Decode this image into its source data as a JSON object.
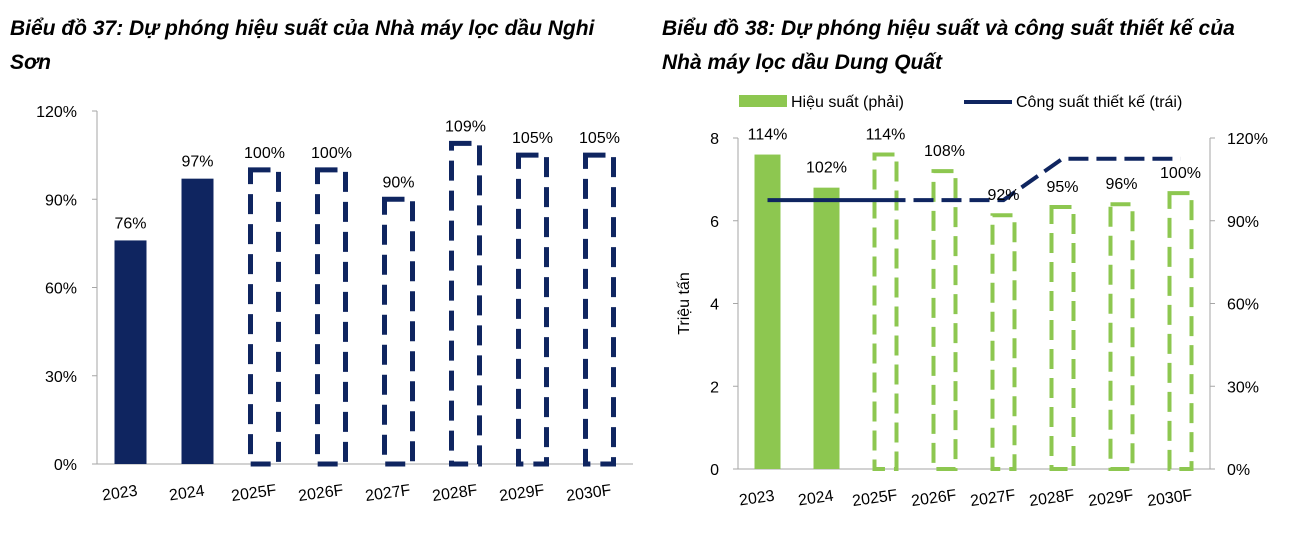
{
  "colors": {
    "navy": "#0f2560",
    "green": "#8dc750",
    "axis": "#a6a6a6"
  },
  "chart_data": [
    {
      "type": "bar",
      "title": "Biểu đồ 37: Dự phóng hiệu suất của Nhà máy lọc dầu Nghi Sơn",
      "categories": [
        "2023",
        "2024",
        "2025F",
        "2026F",
        "2027F",
        "2028F",
        "2029F",
        "2030F"
      ],
      "values": [
        76,
        97,
        100,
        100,
        90,
        109,
        105,
        105
      ],
      "data_labels": [
        "76%",
        "97%",
        "100%",
        "100%",
        "90%",
        "109%",
        "105%",
        "105%"
      ],
      "forecast": [
        false,
        false,
        true,
        true,
        true,
        true,
        true,
        true
      ],
      "ylim": [
        0,
        120
      ],
      "yticks": [
        0,
        30,
        60,
        90,
        120
      ],
      "ytick_labels": [
        "0%",
        "30%",
        "60%",
        "90%",
        "120%"
      ],
      "grid": false,
      "legend": "none"
    },
    {
      "type": "bar",
      "title": "Biểu đồ 38: Dự phóng hiệu suất và công suất thiết kế của Nhà máy lọc dầu Dung Quất",
      "categories": [
        "2023",
        "2024",
        "2025F",
        "2026F",
        "2027F",
        "2028F",
        "2029F",
        "2030F"
      ],
      "ylabel": "Triệu tấn",
      "ylim_left": [
        0,
        8
      ],
      "yticks_left": [
        0,
        2,
        4,
        6,
        8
      ],
      "ytick_labels_left": [
        "0",
        "2",
        "4",
        "6",
        "8"
      ],
      "ylim_right": [
        0,
        120
      ],
      "yticks_right": [
        0,
        30,
        60,
        90,
        120
      ],
      "ytick_labels_right": [
        "0%",
        "30%",
        "60%",
        "90%",
        "120%"
      ],
      "legend_position": "top",
      "grid": false,
      "series": [
        {
          "name": "Hiệu suất (phải)",
          "type": "bar",
          "axis": "right",
          "values": [
            114,
            102,
            114,
            108,
            92,
            95,
            96,
            100
          ],
          "data_labels": [
            "114%",
            "102%",
            "114%",
            "108%",
            "92%",
            "95%",
            "96%",
            "100%"
          ],
          "forecast": [
            false,
            false,
            true,
            true,
            true,
            true,
            true,
            true
          ]
        },
        {
          "name": "Công suất thiết kế (trái)",
          "type": "line",
          "axis": "left",
          "values": [
            6.5,
            6.5,
            6.5,
            6.5,
            6.5,
            7.5,
            7.5,
            7.5
          ],
          "forecast": [
            false,
            false,
            true,
            true,
            true,
            true,
            true,
            true
          ]
        }
      ]
    }
  ]
}
